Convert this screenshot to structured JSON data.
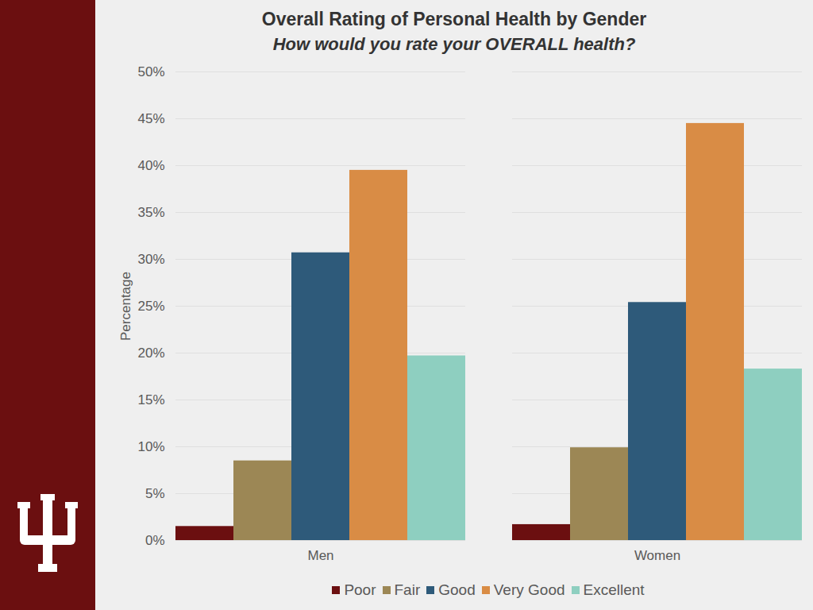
{
  "chart_data": {
    "type": "bar",
    "title": "Overall Rating of Personal Health by Gender",
    "subtitle": "How would you rate your OVERALL health?",
    "y_label": "Percentage",
    "categories": [
      "Men",
      "Women"
    ],
    "series": [
      {
        "name": "Poor",
        "color": "#6b0f10",
        "values": [
          1.5,
          1.7
        ]
      },
      {
        "name": "Fair",
        "color": "#9c8755",
        "values": [
          8.5,
          9.9
        ]
      },
      {
        "name": "Good",
        "color": "#2e5a7a",
        "values": [
          30.7,
          25.4
        ]
      },
      {
        "name": "Very Good",
        "color": "#d98c45",
        "values": [
          39.5,
          44.5
        ]
      },
      {
        "name": "Excellent",
        "color": "#8ecfc0",
        "values": [
          19.7,
          18.3
        ]
      }
    ],
    "ylim": [
      0,
      50
    ],
    "yticks": [
      {
        "value": 0,
        "label": "0%"
      },
      {
        "value": 5,
        "label": "5%"
      },
      {
        "value": 10,
        "label": "10%"
      },
      {
        "value": 15,
        "label": "15%"
      },
      {
        "value": 20,
        "label": "20%"
      },
      {
        "value": 25,
        "label": "25%"
      },
      {
        "value": 30,
        "label": "30%"
      },
      {
        "value": 35,
        "label": "35%"
      },
      {
        "value": 40,
        "label": "40%"
      },
      {
        "value": 45,
        "label": "45%"
      },
      {
        "value": 50,
        "label": "50%"
      }
    ],
    "grid": true,
    "legend": "bottom"
  }
}
